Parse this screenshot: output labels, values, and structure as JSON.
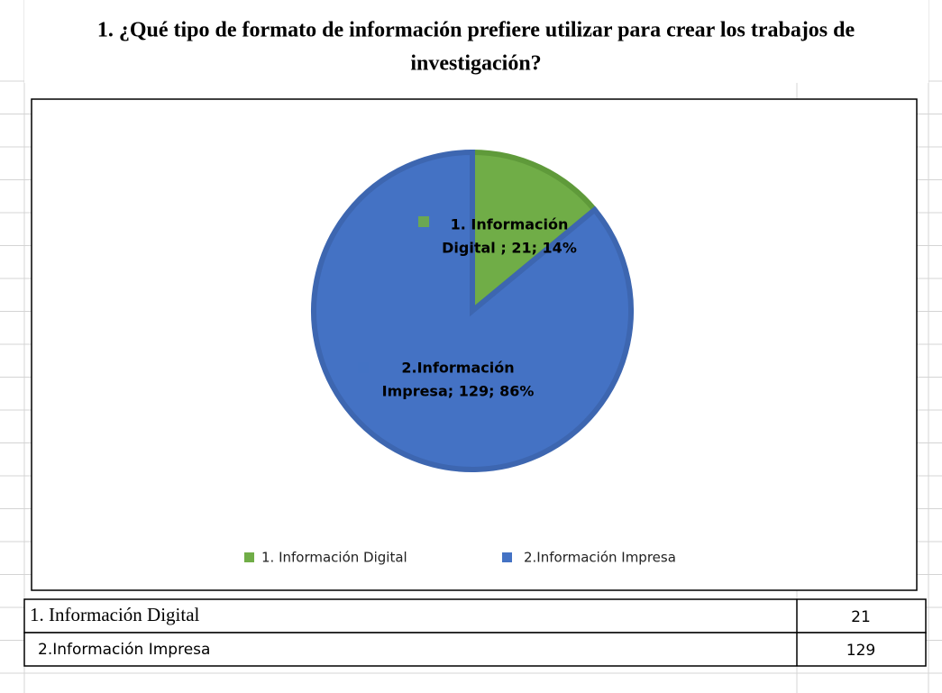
{
  "chart_data": {
    "type": "pie",
    "title": "1. ¿Qué tipo de formato de información prefiere utilizar para crear los trabajos de investigación?",
    "categories": [
      "1. Información Digital",
      "2.Información Impresa"
    ],
    "values": [
      21,
      129
    ],
    "value_labels": [
      [
        "1. Información",
        "Digital      ; 21; 14%"
      ],
      [
        "2.Información",
        "Impresa; 129; 86%"
      ]
    ],
    "colors": [
      "#70ad47",
      "#4472c4"
    ],
    "legend": "bottom"
  },
  "table": {
    "rows": [
      [
        "1. Información Digital",
        "21"
      ],
      [
        "2.Información Impresa",
        "129"
      ]
    ]
  }
}
